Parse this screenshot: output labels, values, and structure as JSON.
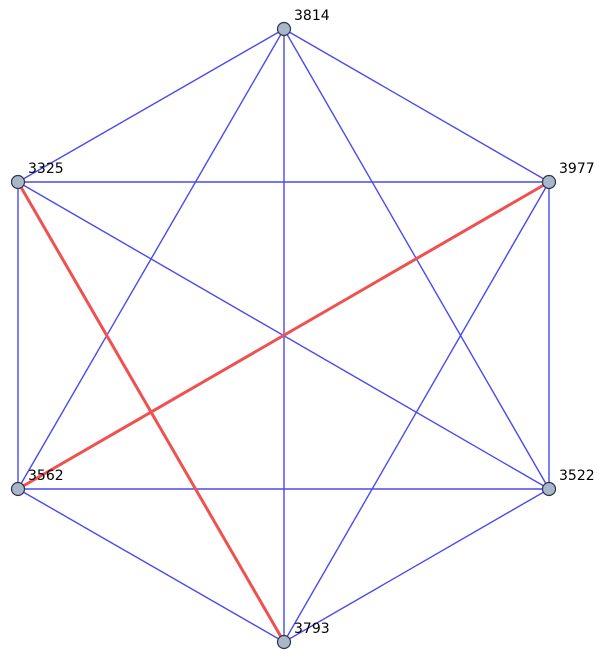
{
  "graph": {
    "nodes": [
      {
        "id": "3814",
        "label": "3814"
      },
      {
        "id": "3325",
        "label": "3325"
      },
      {
        "id": "3977",
        "label": "3977"
      },
      {
        "id": "3562",
        "label": "3562"
      },
      {
        "id": "3522",
        "label": "3522"
      },
      {
        "id": "3793",
        "label": "3793"
      }
    ],
    "edges": [
      {
        "from": "3814",
        "to": "3325"
      },
      {
        "from": "3814",
        "to": "3977"
      },
      {
        "from": "3814",
        "to": "3562"
      },
      {
        "from": "3814",
        "to": "3793"
      },
      {
        "from": "3814",
        "to": "3522"
      },
      {
        "from": "3325",
        "to": "3977"
      },
      {
        "from": "3325",
        "to": "3562"
      },
      {
        "from": "3325",
        "to": "3522"
      },
      {
        "from": "3977",
        "to": "3522"
      },
      {
        "from": "3977",
        "to": "3793"
      },
      {
        "from": "3562",
        "to": "3522"
      },
      {
        "from": "3562",
        "to": "3793"
      },
      {
        "from": "3522",
        "to": "3793"
      },
      {
        "from": "3325",
        "to": "3793",
        "highlight": true
      },
      {
        "from": "3977",
        "to": "3562",
        "highlight": true
      }
    ],
    "colors": {
      "edge": "#4a4aee",
      "highlight_edge": "#f05050",
      "node_fill": "#a8b8cc",
      "node_stroke": "#33333d"
    }
  }
}
